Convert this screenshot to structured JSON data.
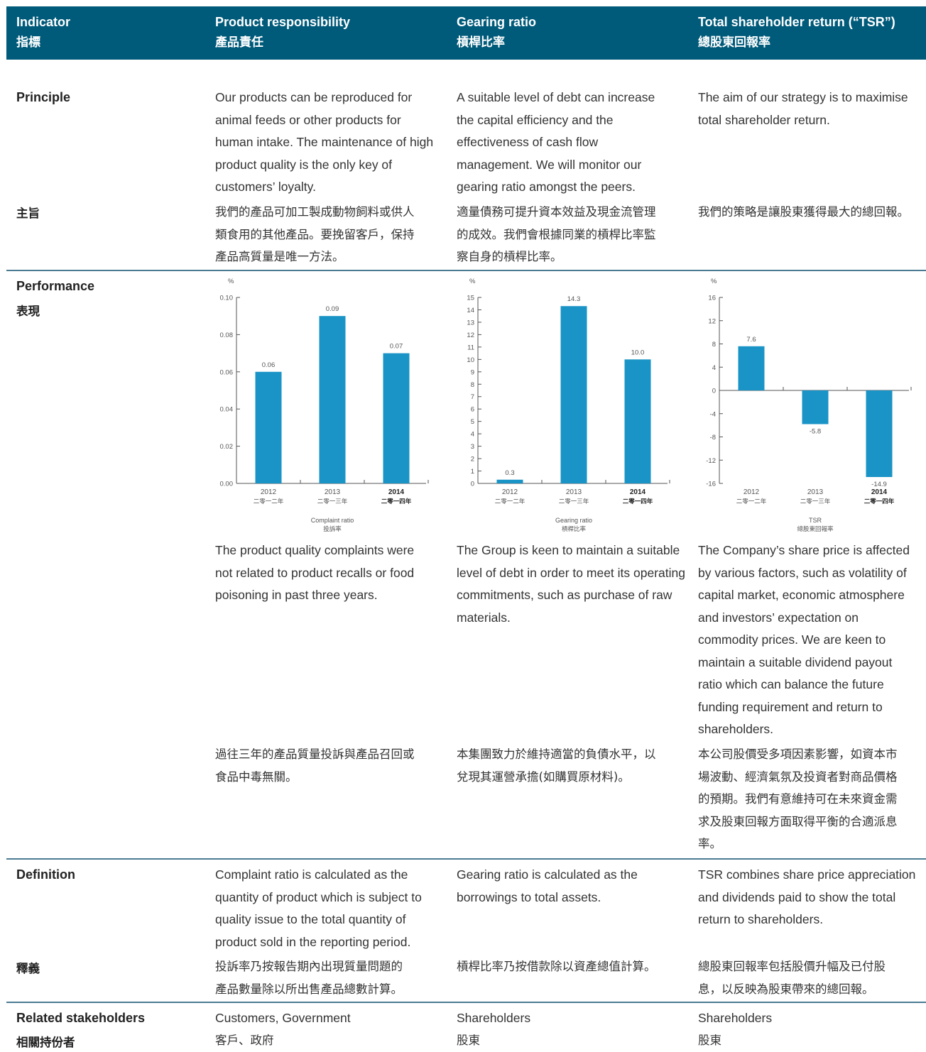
{
  "header": [
    {
      "en": "Indicator",
      "zh": "指標"
    },
    {
      "en": "Product responsibility",
      "zh": "產品責任"
    },
    {
      "en": "Gearing ratio",
      "zh": "槓桿比率"
    },
    {
      "en": "Total shareholder return (“TSR”)",
      "zh": "總股東回報率"
    }
  ],
  "rows": {
    "principle": {
      "label_en": "Principle",
      "label_zh": "主旨",
      "en": [
        [
          "Our products can be reproduced for",
          "animal feeds or other products for",
          "human intake. The maintenance of high",
          "product quality is the only key of",
          "customers’ loyalty."
        ],
        [
          "A suitable level of debt can increase",
          "the capital efficiency and the",
          "effectiveness of cash flow",
          "management. We will monitor our",
          "gearing ratio amongst the peers."
        ],
        [
          "The aim of our strategy is to maximise",
          "total shareholder return."
        ]
      ],
      "zh": [
        [
          "我們的產品可加工製成動物飼料或供人",
          "類食用的其他產品。要挽留客戶，保持",
          "產品高質量是唯一方法。"
        ],
        [
          "適量債務可提升資本效益及現金流管理",
          "的成效。我們會根據同業的槓桿比率監",
          "察自身的槓桿比率。"
        ],
        [
          "我們的策略是讓股東獲得最大的總回報。"
        ]
      ]
    },
    "performance": {
      "label_en": "Performance",
      "label_zh": "表現",
      "en": [
        [
          "The product quality complaints were",
          "not related to product recalls or food",
          "poisoning in past three years."
        ],
        [
          "The Group is keen to maintain a suitable",
          "level of debt in order to meet its operating",
          "commitments, such as purchase of raw",
          "materials."
        ],
        [
          "The Company’s share price is affected",
          "by various factors, such as volatility of",
          "capital market, economic atmosphere",
          "and investors’ expectation on",
          "commodity prices. We are keen to",
          "maintain a suitable dividend payout",
          "ratio which can balance the future",
          "funding requirement and return to",
          "shareholders."
        ]
      ],
      "zh": [
        [
          "過往三年的產品質量投訴與產品召回或",
          "食品中毒無關。"
        ],
        [
          "本集團致力於維持適當的負債水平，以",
          "兌現其運營承擔(如購買原材料)。"
        ],
        [
          "本公司股價受多項因素影響，如資本市",
          "場波動、經濟氣氛及投資者對商品價格",
          "的預期。我們有意維持可在未來資金需",
          "求及股東回報方面取得平衡的合適派息",
          "率。"
        ]
      ]
    },
    "definition": {
      "label_en": "Definition",
      "label_zh": "釋義",
      "en": [
        [
          "Complaint ratio is calculated as the",
          "quantity of product which is subject to",
          "quality issue to the total quantity of",
          "product sold in the reporting period."
        ],
        [
          "Gearing ratio is calculated as the",
          "borrowings to total assets."
        ],
        [
          "TSR combines share price appreciation",
          "and dividends paid to show the total",
          "return to shareholders."
        ]
      ],
      "zh": [
        [
          "投訴率乃按報告期內出現質量問題的",
          "產品數量除以所出售產品總數計算。"
        ],
        [
          "槓桿比率乃按借款除以資產總值計算。"
        ],
        [
          "總股東回報率包括股價升幅及已付股",
          "息，以反映為股東帶來的總回報。"
        ]
      ]
    },
    "stakeholders": {
      "label_en": "Related stakeholders",
      "label_zh": "相關持份者",
      "en": [
        [
          "Customers, Government"
        ],
        [
          "Shareholders"
        ],
        [
          "Shareholders"
        ]
      ],
      "zh": [
        [
          "客戶、政府"
        ],
        [
          "股東"
        ],
        [
          "股東"
        ]
      ]
    }
  },
  "chart_data": [
    {
      "type": "bar",
      "unit": "%",
      "categories": [
        "2012",
        "2013",
        "2014"
      ],
      "categories_zh": [
        "二零一二年",
        "二零一三年",
        "二零一四年"
      ],
      "values": [
        0.06,
        0.09,
        0.07
      ],
      "value_labels": [
        "0.06",
        "0.09",
        "0.07"
      ],
      "ylim": [
        0,
        0.1
      ],
      "ticks": [
        0,
        0.02,
        0.04,
        0.06,
        0.08,
        0.1
      ],
      "tick_labels": [
        "0.00",
        "0.02",
        "0.04",
        "0.06",
        "0.08",
        "0.10"
      ],
      "xlabel": "Complaint ratio",
      "xlabel_zh": "投訴率",
      "bold_last": true,
      "color": "#1a94c6"
    },
    {
      "type": "bar",
      "unit": "%",
      "categories": [
        "2012",
        "2013",
        "2014"
      ],
      "categories_zh": [
        "二零一二年",
        "二零一三年",
        "二零一四年"
      ],
      "values": [
        0.3,
        14.3,
        10.0
      ],
      "value_labels": [
        "0.3",
        "14.3",
        "10.0"
      ],
      "ylim": [
        0,
        15
      ],
      "ticks": [
        0,
        1,
        2,
        3,
        4,
        5,
        6,
        7,
        8,
        9,
        10,
        11,
        12,
        13,
        14,
        15
      ],
      "tick_labels": [
        "0",
        "1",
        "2",
        "3",
        "4",
        "5",
        "6",
        "7",
        "8",
        "9",
        "10",
        "11",
        "12",
        "13",
        "14",
        "15"
      ],
      "xlabel": "Gearing ratio",
      "xlabel_zh": "槓桿比率",
      "bold_last": true,
      "color": "#1a94c6"
    },
    {
      "type": "bar",
      "unit": "%",
      "categories": [
        "2012",
        "2013",
        "2014"
      ],
      "categories_zh": [
        "二零一二年",
        "二零一三年",
        "二零一四年"
      ],
      "values": [
        7.6,
        -5.8,
        -14.9
      ],
      "value_labels": [
        "7.6",
        "-5.8",
        "-14.9"
      ],
      "ylim": [
        -16,
        16
      ],
      "ticks": [
        -16,
        -12,
        -8,
        -4,
        0,
        4,
        8,
        12,
        16
      ],
      "tick_labels": [
        "-16",
        "-12",
        "-8",
        "-4",
        "0",
        "4",
        "8",
        "12",
        "16"
      ],
      "xlabel": "TSR",
      "xlabel_zh": "總股東回報率",
      "bold_last": true,
      "color": "#1a94c6"
    }
  ],
  "colors": {
    "header_bg": "#005a7a",
    "rule": "#4a7b92",
    "bar": "#1a94c6"
  }
}
